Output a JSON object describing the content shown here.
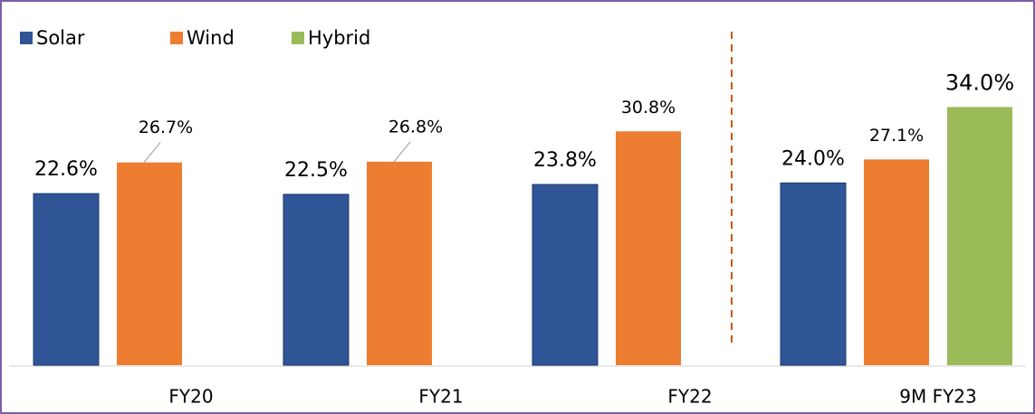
{
  "chart_data": {
    "type": "bar",
    "categories": [
      "FY20",
      "FY21",
      "FY22",
      "9M FY23"
    ],
    "series": [
      {
        "name": "Solar",
        "color": "#2f5597",
        "values": [
          22.6,
          22.5,
          23.8,
          24.0
        ],
        "value_labels": [
          "22.6%",
          "22.5%",
          "23.8%",
          "24.0%"
        ]
      },
      {
        "name": "Wind",
        "color": "#ed7d31",
        "values": [
          26.7,
          26.8,
          30.8,
          27.1
        ],
        "value_labels": [
          "26.7%",
          "26.8%",
          "30.8%",
          "27.1%"
        ]
      },
      {
        "name": "Hybrid",
        "color": "#9bbb59",
        "values": [
          null,
          null,
          null,
          34.0
        ],
        "value_labels": [
          null,
          null,
          null,
          "34.0%"
        ]
      }
    ],
    "ylim": [
      0,
      40
    ],
    "legend": "top-left"
  }
}
